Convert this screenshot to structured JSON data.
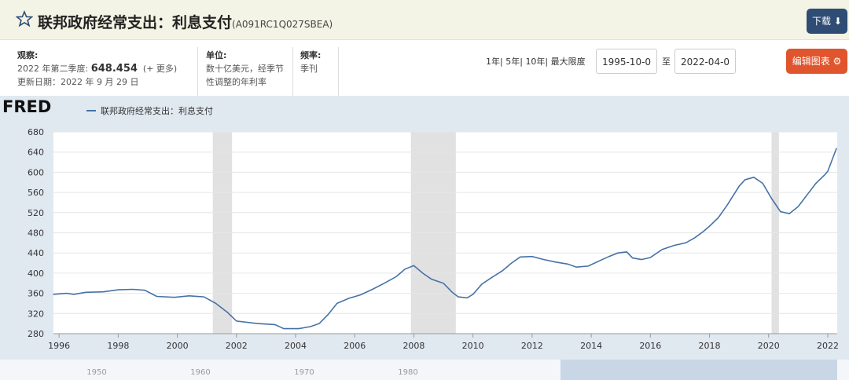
{
  "header": {
    "title": "联邦政府经常支出：利息支付",
    "series_id": "(A091RC1Q027SBEA)",
    "download": "下载"
  },
  "info": {
    "observation_label": "观察:",
    "observation_period": "2022 年第二季度:",
    "observation_value": "648.454",
    "more": "(+ 更多)",
    "updated": "更新日期：2022 年 9 月 29 日",
    "units_label": "单位:",
    "units": "数十亿美元，经季节性调整的年利率",
    "frequency_label": "频率:",
    "frequency": "季刊"
  },
  "controls": {
    "ranges": [
      "1年|",
      "5年|",
      "10年|",
      "最大限度"
    ],
    "start_date": "1995-10-0",
    "to": "至",
    "end_date": "2022-04-0",
    "edit": "编辑图表"
  },
  "logo": "FRED",
  "chart_data": {
    "type": "line",
    "x": [
      1995.8,
      1996.25,
      1996.5,
      1996.9,
      1997.5,
      1998,
      1998.5,
      1998.9,
      1999.3,
      1999.9,
      2000.4,
      2000.9,
      2001.3,
      2001.7,
      2002,
      2002.7,
      2003.3,
      2003.6,
      2004.1,
      2004.5,
      2004.8,
      2005.1,
      2005.4,
      2005.8,
      2006.2,
      2006.6,
      2007,
      2007.4,
      2007.7,
      2008,
      2008.3,
      2008.6,
      2009,
      2009.3,
      2009.5,
      2009.8,
      2010,
      2010.3,
      2010.6,
      2011,
      2011.3,
      2011.6,
      2012,
      2012.4,
      2012.8,
      2013.2,
      2013.5,
      2013.9,
      2014.3,
      2014.6,
      2014.9,
      2015.2,
      2015.4,
      2015.7,
      2016,
      2016.4,
      2016.8,
      2017.2,
      2017.5,
      2017.8,
      2018,
      2018.3,
      2018.6,
      2019,
      2019.2,
      2019.5,
      2019.8,
      2020.1,
      2020.4,
      2020.7,
      2021,
      2021.3,
      2021.6,
      2021.9,
      2022,
      2022.3
    ],
    "series": [
      {
        "name": "联邦政府经常支出：利息支付",
        "color": "#4572a7",
        "values": [
          358,
          360,
          358,
          362,
          363,
          367,
          368,
          366,
          354,
          352,
          355,
          353,
          340,
          322,
          305,
          300,
          298,
          290,
          290,
          294,
          300,
          318,
          340,
          350,
          357,
          368,
          380,
          393,
          408,
          415,
          400,
          388,
          380,
          362,
          353,
          351,
          358,
          378,
          390,
          405,
          420,
          432,
          433,
          427,
          422,
          418,
          412,
          414,
          425,
          433,
          440,
          442,
          430,
          427,
          431,
          447,
          455,
          460,
          470,
          483,
          493,
          510,
          535,
          572,
          585,
          590,
          578,
          548,
          522,
          518,
          532,
          555,
          578,
          595,
          602,
          648
        ]
      }
    ],
    "xlim": [
      1995.81,
      2022.32
    ],
    "ylim": [
      280,
      680
    ],
    "xticks": [
      1996,
      1998,
      2000,
      2002,
      2004,
      2006,
      2008,
      2010,
      2012,
      2014,
      2016,
      2018,
      2020,
      2022
    ],
    "yticks": [
      280,
      320,
      360,
      400,
      440,
      480,
      520,
      560,
      600,
      640,
      680
    ],
    "recessions": [
      [
        2001.2,
        2001.85
      ],
      [
        2007.9,
        2009.42
      ],
      [
        2020.1,
        2020.35
      ]
    ],
    "recession_color": "#e1e1e1",
    "grid": true,
    "navigator_labels": [
      "1950",
      "1960",
      "1970",
      "1980"
    ]
  }
}
